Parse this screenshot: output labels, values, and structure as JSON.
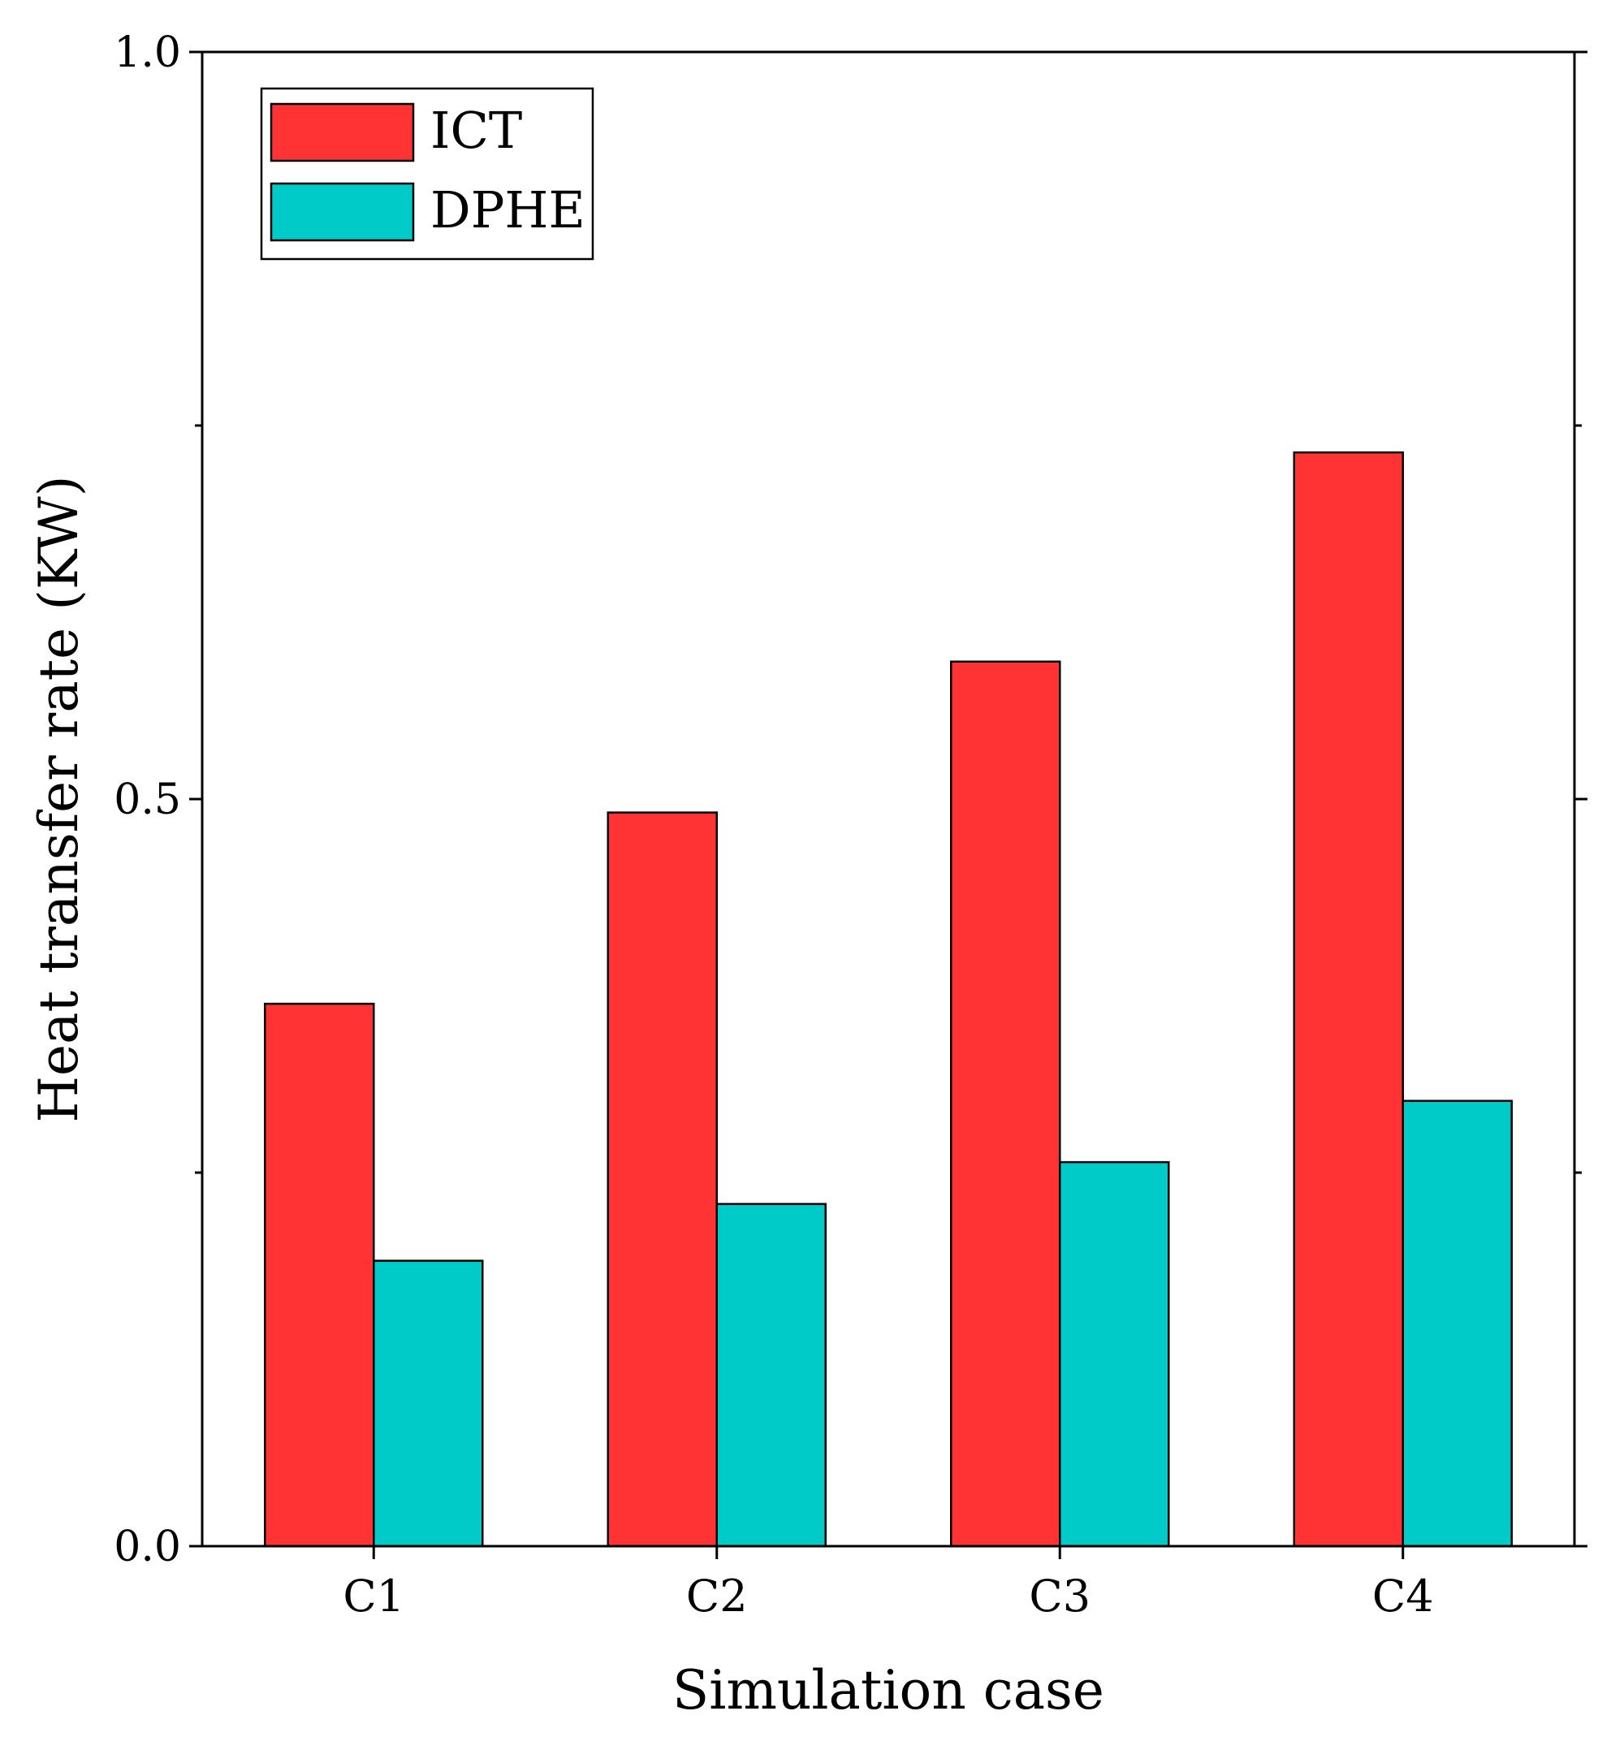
{
  "chart_data": {
    "type": "bar",
    "title": "",
    "xlabel": "Simulation case",
    "ylabel": "Heat transfer rate (KW)",
    "categories": [
      "C1",
      "C2",
      "C3",
      "C4"
    ],
    "series": [
      {
        "name": "ICT",
        "color": "#ff3333",
        "values": [
          0.363,
          0.491,
          0.592,
          0.732
        ]
      },
      {
        "name": "DPHE",
        "color": "#00cbc8",
        "values": [
          0.191,
          0.229,
          0.257,
          0.298
        ]
      }
    ],
    "ylim": [
      0,
      1.0
    ],
    "yticks": [
      0.0,
      0.5,
      1.0
    ],
    "ytick_labels": [
      "0.0",
      "0.5",
      "1.0"
    ],
    "y_minor_ticks": [
      0.25,
      0.75
    ],
    "legend_position": "top-left",
    "grid": false
  }
}
